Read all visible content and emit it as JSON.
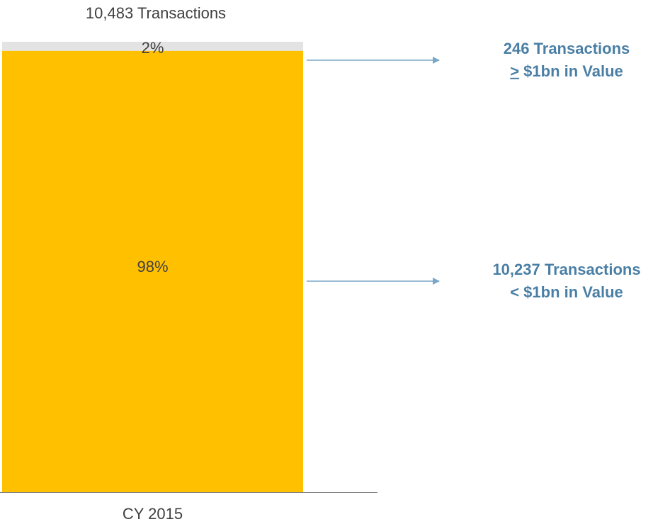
{
  "chart_data": {
    "type": "stacked_bar",
    "title": "10,483 Transactions",
    "categories": [
      "CY 2015"
    ],
    "ylim": [
      0,
      100
    ],
    "series": [
      {
        "color": "#ffc000",
        "values": [
          98
        ],
        "value_labels": [
          "98%"
        ]
      },
      {
        "color": "#e3e3e3",
        "values": [
          2
        ],
        "value_labels": [
          "2%"
        ]
      }
    ],
    "annotations": [
      {
        "lines": [
          "10,237 Transactions",
          "< $1bn in Value"
        ],
        "color": "#4a7fa5"
      },
      {
        "lines": [
          "246 Transactions",
          "> $1bn in Value"
        ],
        "color": "#4a7fa5"
      }
    ]
  }
}
